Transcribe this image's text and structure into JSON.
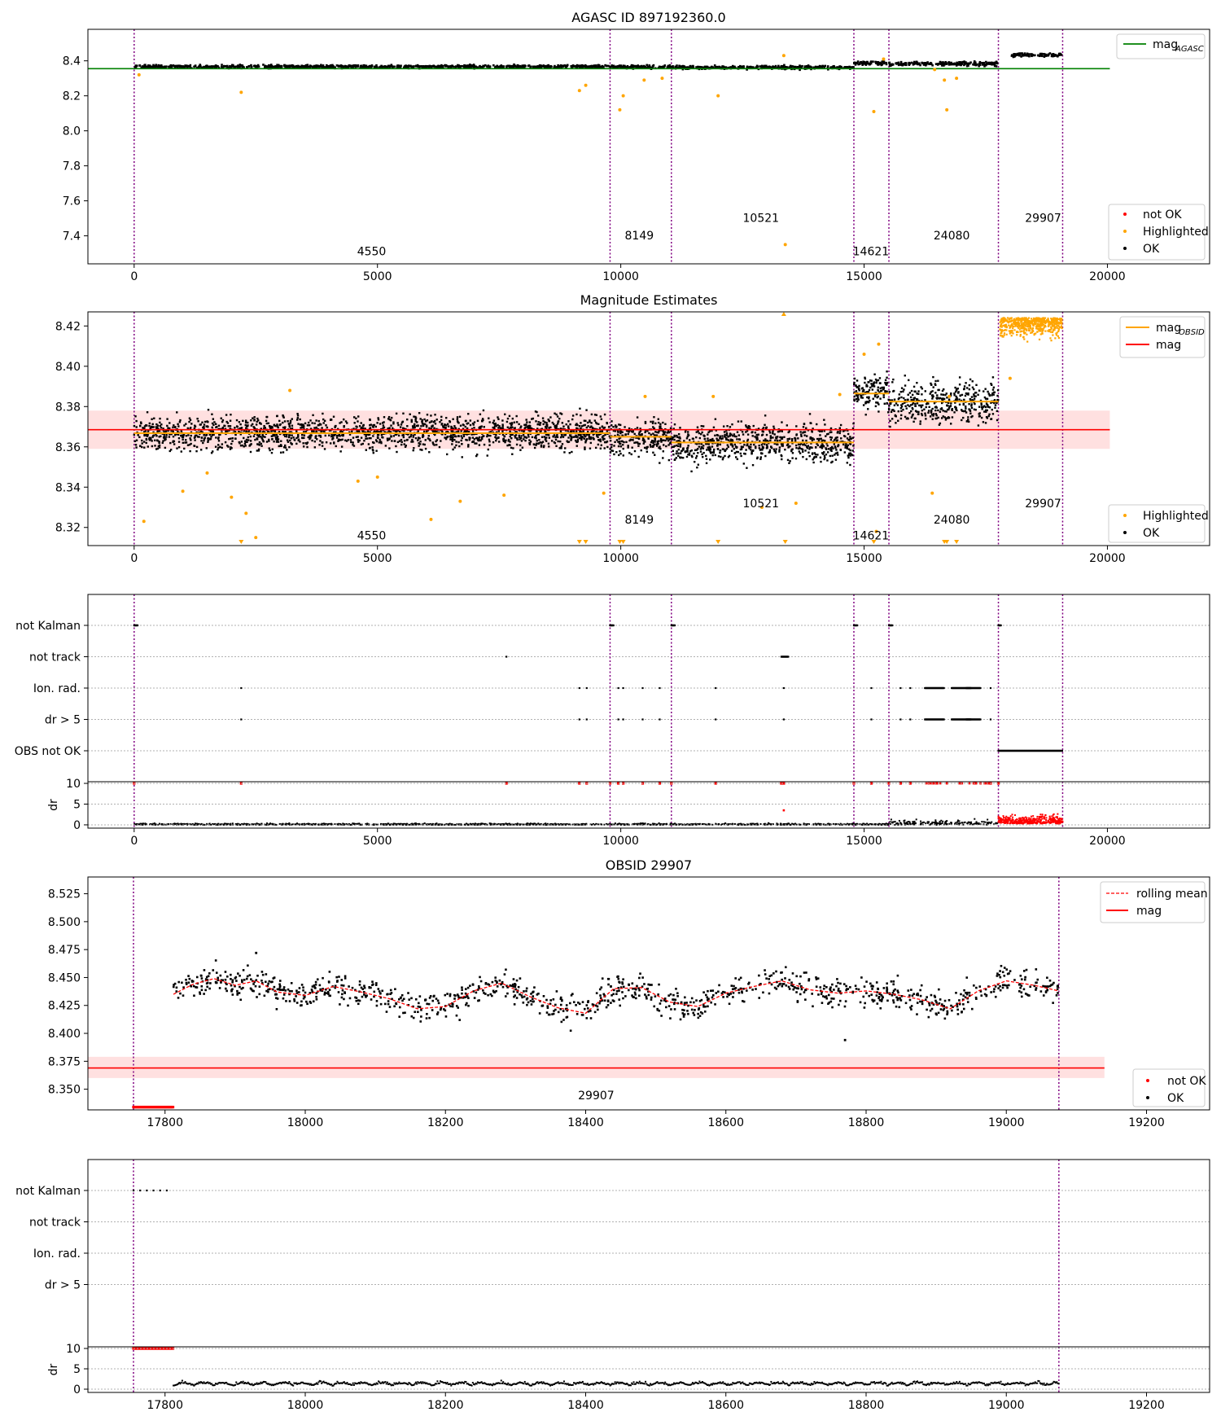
{
  "chart_data": [
    {
      "panel": "agasc-overview",
      "type": "scatter",
      "title": "AGASC ID 897192360.0",
      "xlim": [
        -950,
        22100
      ],
      "ylim": [
        7.24,
        8.58
      ],
      "xticks": [
        0,
        5000,
        10000,
        15000,
        20000
      ],
      "yticks": [
        7.4,
        7.6,
        7.8,
        8.0,
        8.2,
        8.4
      ],
      "ytick_labels": [
        "7.4",
        "7.6",
        "7.8",
        "8.0",
        "8.2",
        "8.4"
      ],
      "obs_boundaries": [
        0,
        9780,
        11040,
        14790,
        15510,
        17760,
        19080
      ],
      "obsid_labels": [
        {
          "text": "4550",
          "x": 4880,
          "y": 7.29
        },
        {
          "text": "8149",
          "x": 10380,
          "y": 7.38
        },
        {
          "text": "10521",
          "x": 12880,
          "y": 7.48
        },
        {
          "text": "14621",
          "x": 15140,
          "y": 7.29
        },
        {
          "text": "24080",
          "x": 16800,
          "y": 7.38
        },
        {
          "text": "29907",
          "x": 18680,
          "y": 7.48
        }
      ],
      "reference_line": {
        "name": "mag_AGASC",
        "value": 8.355,
        "x_range": [
          -950,
          20050
        ],
        "color": "#008000"
      },
      "segments": [
        {
          "x": [
            0,
            9780
          ],
          "median": 8.367,
          "spread": 0.012
        },
        {
          "x": [
            9780,
            11040
          ],
          "median": 8.365,
          "spread": 0.012
        },
        {
          "x": [
            11040,
            14790
          ],
          "median": 8.362,
          "spread": 0.013
        },
        {
          "x": [
            14790,
            15510
          ],
          "median": 8.387,
          "spread": 0.015
        },
        {
          "x": [
            15510,
            17760
          ],
          "median": 8.383,
          "spread": 0.016
        },
        {
          "x": [
            18030,
            19080
          ],
          "median": 8.434,
          "spread": 0.013
        }
      ],
      "highlighted_points": [
        [
          100,
          8.32
        ],
        [
          2200,
          8.22
        ],
        [
          9150,
          8.23
        ],
        [
          9280,
          8.26
        ],
        [
          9980,
          8.12
        ],
        [
          10050,
          8.2
        ],
        [
          10480,
          8.29
        ],
        [
          10850,
          8.3
        ],
        [
          12000,
          8.2
        ],
        [
          13350,
          8.43
        ],
        [
          13380,
          7.35
        ],
        [
          15200,
          8.11
        ],
        [
          15400,
          8.41
        ],
        [
          16450,
          8.35
        ],
        [
          16650,
          8.29
        ],
        [
          16700,
          8.12
        ],
        [
          16900,
          8.3
        ]
      ],
      "legend_top": [
        {
          "name": "mag",
          "sub": "AGASC",
          "color": "#008000"
        }
      ],
      "legend_bottom": [
        {
          "name": "not OK",
          "color": "#ff0000"
        },
        {
          "name": "Highlighted",
          "color": "#ffa500"
        },
        {
          "name": "OK",
          "color": "#000000"
        }
      ]
    },
    {
      "panel": "magnitude-estimates",
      "type": "scatter",
      "title": "Magnitude Estimates",
      "xlim": [
        -950,
        22100
      ],
      "ylim": [
        8.311,
        8.427
      ],
      "xticks": [
        0,
        5000,
        10000,
        15000,
        20000
      ],
      "yticks": [
        8.32,
        8.34,
        8.36,
        8.38,
        8.4,
        8.42
      ],
      "ytick_labels": [
        "8.32",
        "8.34",
        "8.36",
        "8.38",
        "8.40",
        "8.42"
      ],
      "obs_boundaries": [
        0,
        9780,
        11040,
        14790,
        15510,
        17760,
        19080
      ],
      "obsid_labels": [
        {
          "text": "4550",
          "x": 4880,
          "y": 8.314
        },
        {
          "text": "8149",
          "x": 10380,
          "y": 8.322
        },
        {
          "text": "10521",
          "x": 12880,
          "y": 8.33
        },
        {
          "text": "14621",
          "x": 15140,
          "y": 8.314
        },
        {
          "text": "24080",
          "x": 16800,
          "y": 8.322
        },
        {
          "text": "29907",
          "x": 18680,
          "y": 8.33
        }
      ],
      "mag": {
        "value": 8.3685,
        "band": [
          8.359,
          8.378
        ],
        "x_range": [
          -950,
          20050
        ],
        "color": "#ff0000"
      },
      "mag_obsid": [
        {
          "x": [
            0,
            9780
          ],
          "value": 8.3668
        },
        {
          "x": [
            9780,
            11040
          ],
          "value": 8.365
        },
        {
          "x": [
            11040,
            14790
          ],
          "value": 8.3622
        },
        {
          "x": [
            14790,
            15510
          ],
          "value": 8.3865
        },
        {
          "x": [
            15510,
            17760
          ],
          "value": 8.3825
        }
      ],
      "segments": [
        {
          "x": [
            0,
            9780
          ],
          "median": 8.367,
          "spread": 0.0075
        },
        {
          "x": [
            9780,
            11040
          ],
          "median": 8.365,
          "spread": 0.008
        },
        {
          "x": [
            11040,
            14790
          ],
          "median": 8.362,
          "spread": 0.0085
        },
        {
          "x": [
            14790,
            15510
          ],
          "median": 8.387,
          "spread": 0.008
        },
        {
          "x": [
            15510,
            17760
          ],
          "median": 8.382,
          "spread": 0.009
        }
      ],
      "highlighted_points": [
        [
          200,
          8.323
        ],
        [
          1000,
          8.338
        ],
        [
          1500,
          8.347
        ],
        [
          2000,
          8.335
        ],
        [
          2300,
          8.327
        ],
        [
          2500,
          8.315
        ],
        [
          3200,
          8.388
        ],
        [
          4600,
          8.343
        ],
        [
          5000,
          8.345
        ],
        [
          6100,
          8.324
        ],
        [
          6700,
          8.333
        ],
        [
          7600,
          8.336
        ],
        [
          9650,
          8.337
        ],
        [
          10500,
          8.385
        ],
        [
          11900,
          8.385
        ],
        [
          12900,
          8.33
        ],
        [
          13600,
          8.332
        ],
        [
          14500,
          8.386
        ],
        [
          15000,
          8.406
        ],
        [
          15300,
          8.411
        ],
        [
          16400,
          8.337
        ],
        [
          16750,
          8.385
        ],
        [
          18000,
          8.394
        ],
        [
          15250,
          8.318
        ]
      ],
      "legend_top": [
        {
          "name": "mag",
          "sub": "OBSID",
          "color": "#ffa500"
        },
        {
          "name": "mag",
          "sub": "",
          "color": "#ff0000"
        }
      ],
      "legend_bottom": [
        {
          "name": "Highlighted",
          "color": "#ffa500"
        },
        {
          "name": "OK",
          "color": "#000000"
        }
      ]
    },
    {
      "panel": "flags-all",
      "type": "scatter",
      "xlim": [
        -950,
        22100
      ],
      "xticks": [
        0,
        5000,
        10000,
        15000,
        20000
      ],
      "categories": [
        "not Kalman",
        "not track",
        "Ion. rad.",
        "dr > 5",
        "OBS not OK"
      ],
      "dr_ylim": [
        -0.4,
        10.4
      ],
      "dr_yticks": [
        0,
        5,
        10
      ],
      "dr_label": "dr",
      "obs_boundaries": [
        0,
        9780,
        11040,
        14790,
        15510,
        17760,
        19080
      ],
      "flag_points": {
        "not Kalman": [
          [
            0,
            80
          ],
          [
            9780,
            80
          ],
          [
            11040,
            80
          ],
          [
            14790,
            80
          ],
          [
            15510,
            80
          ],
          [
            17760,
            60
          ]
        ],
        "not track": [
          [
            7650,
            1
          ],
          [
            13300,
            150
          ]
        ],
        "Ion. rad.": [
          [
            2200,
            1
          ],
          [
            9150,
            1
          ],
          [
            9300,
            1
          ],
          [
            9950,
            1
          ],
          [
            10050,
            1
          ],
          [
            10450,
            1
          ],
          [
            10800,
            1
          ],
          [
            11950,
            1
          ],
          [
            13350,
            1
          ],
          [
            15150,
            1
          ],
          [
            15750,
            1
          ],
          [
            15950,
            1
          ],
          [
            16250,
            400
          ],
          [
            16800,
            400
          ],
          [
            17100,
            300
          ],
          [
            17600,
            1
          ]
        ],
        "dr > 5": [
          [
            2200,
            1
          ],
          [
            9150,
            1
          ],
          [
            9300,
            1
          ],
          [
            9950,
            1
          ],
          [
            10050,
            1
          ],
          [
            10450,
            1
          ],
          [
            10800,
            1
          ],
          [
            11950,
            1
          ],
          [
            13350,
            1
          ],
          [
            15150,
            1
          ],
          [
            15750,
            1
          ],
          [
            15950,
            1
          ],
          [
            16250,
            400
          ],
          [
            16800,
            400
          ],
          [
            17100,
            300
          ],
          [
            17600,
            1
          ]
        ],
        "OBS not OK": [
          [
            17760,
            1320
          ]
        ]
      }
    },
    {
      "panel": "obsid-29907",
      "type": "line",
      "title": "OBSID 29907",
      "xlim": [
        17690,
        19290
      ],
      "ylim": [
        8.3315,
        8.54
      ],
      "xticks": [
        17800,
        18000,
        18200,
        18400,
        18600,
        18800,
        19000,
        19200
      ],
      "yticks": [
        8.35,
        8.375,
        8.4,
        8.425,
        8.45,
        8.475,
        8.5,
        8.525
      ],
      "ytick_labels": [
        "8.350",
        "8.375",
        "8.400",
        "8.425",
        "8.450",
        "8.475",
        "8.500",
        "8.525"
      ],
      "obs_boundaries": [
        17755,
        19075
      ],
      "obsid_labels": [
        {
          "text": "29907",
          "x": 18415,
          "y": 8.341
        }
      ],
      "mag": {
        "value": 8.369,
        "band": [
          8.36,
          8.379
        ],
        "x_range": [
          17690,
          19140
        ],
        "color": "#ff0000"
      },
      "rolling_mean": [
        [
          17812,
          8.435
        ],
        [
          17840,
          8.444
        ],
        [
          17870,
          8.449
        ],
        [
          17900,
          8.443
        ],
        [
          17930,
          8.447
        ],
        [
          17960,
          8.437
        ],
        [
          18000,
          8.434
        ],
        [
          18040,
          8.442
        ],
        [
          18080,
          8.437
        ],
        [
          18120,
          8.431
        ],
        [
          18160,
          8.422
        ],
        [
          18200,
          8.424
        ],
        [
          18240,
          8.438
        ],
        [
          18280,
          8.445
        ],
        [
          18320,
          8.433
        ],
        [
          18360,
          8.423
        ],
        [
          18400,
          8.418
        ],
        [
          18440,
          8.44
        ],
        [
          18480,
          8.441
        ],
        [
          18520,
          8.428
        ],
        [
          18560,
          8.424
        ],
        [
          18600,
          8.436
        ],
        [
          18640,
          8.442
        ],
        [
          18680,
          8.447
        ],
        [
          18720,
          8.439
        ],
        [
          18760,
          8.436
        ],
        [
          18800,
          8.438
        ],
        [
          18840,
          8.435
        ],
        [
          18880,
          8.43
        ],
        [
          18920,
          8.422
        ],
        [
          18960,
          8.438
        ],
        [
          19000,
          8.447
        ],
        [
          19040,
          8.443
        ],
        [
          19075,
          8.438
        ]
      ],
      "not_ok": {
        "x": [
          17755,
          17812
        ],
        "y": 8.334
      },
      "outliers": [
        [
          17930,
          8.472
        ],
        [
          18770,
          8.394
        ]
      ],
      "legend_top": [
        {
          "name": "rolling mean",
          "style": "dashed",
          "color": "#ff0000"
        },
        {
          "name": "mag",
          "style": "solid",
          "color": "#ff0000"
        }
      ],
      "legend_bottom": [
        {
          "name": "not OK",
          "color": "#ff0000"
        },
        {
          "name": "OK",
          "color": "#000000"
        }
      ]
    },
    {
      "panel": "flags-obsid",
      "type": "scatter",
      "xlim": [
        17690,
        19290
      ],
      "xticks": [
        17800,
        18000,
        18200,
        18400,
        18600,
        18800,
        19000,
        19200
      ],
      "categories": [
        "not Kalman",
        "not track",
        "Ion. rad.",
        "dr > 5"
      ],
      "dr_ylim": [
        -0.4,
        10.4
      ],
      "dr_yticks": [
        0,
        5,
        10
      ],
      "dr_label": "dr",
      "obs_boundaries": [
        17755,
        19075
      ],
      "flag_points": {
        "not Kalman": [
          [
            17755,
            57
          ]
        ]
      }
    }
  ]
}
